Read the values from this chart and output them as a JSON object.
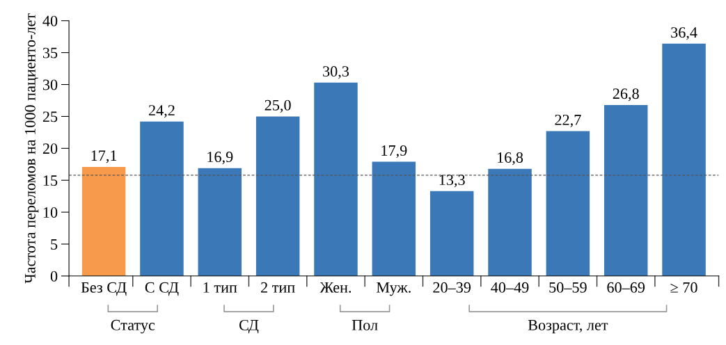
{
  "chart_data": {
    "type": "bar",
    "ylabel": "Частота переломов на 1000 пациенто-лет",
    "categories": [
      "Без СД",
      "С СД",
      "1 тип",
      "2 тип",
      "Жен.",
      "Муж.",
      "20–39",
      "40–49",
      "50–59",
      "60–69",
      "≥ 70"
    ],
    "values": [
      17.1,
      24.2,
      16.9,
      25.0,
      30.3,
      17.9,
      13.3,
      16.8,
      22.7,
      26.8,
      36.4
    ],
    "colors": [
      "#f79a4b",
      "#3b78b7",
      "#3b78b7",
      "#3b78b7",
      "#3b78b7",
      "#3b78b7",
      "#3b78b7",
      "#3b78b7",
      "#3b78b7",
      "#3b78b7",
      "#3b78b7"
    ],
    "value_labels": [
      "17,1",
      "24,2",
      "16,9",
      "25,0",
      "30,3",
      "17,9",
      "13,3",
      "16,8",
      "22,7",
      "26,8",
      "36,4"
    ],
    "ylim": [
      0,
      40
    ],
    "yticks": [
      0,
      5,
      10,
      15,
      20,
      25,
      30,
      35,
      40
    ],
    "ref_lines": [
      {
        "axis": "y",
        "value": 15.8,
        "color": "#555555",
        "line_style": "dashed"
      }
    ],
    "annotations": [
      "Статус",
      "СД",
      "Пол",
      "Возраст, лет"
    ],
    "grid": false,
    "legend": false
  }
}
